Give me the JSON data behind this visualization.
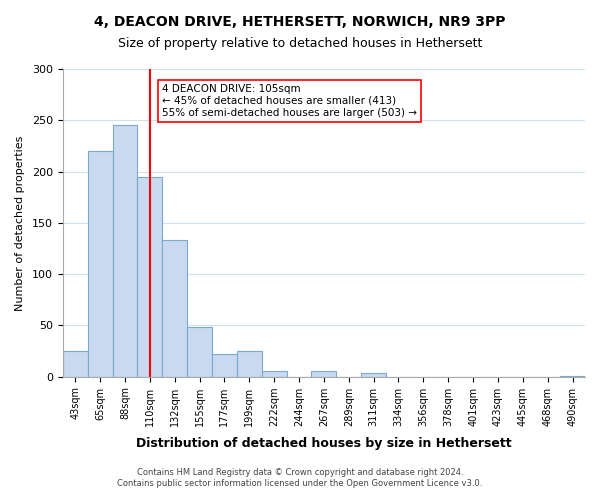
{
  "title": "4, DEACON DRIVE, HETHERSETT, NORWICH, NR9 3PP",
  "subtitle": "Size of property relative to detached houses in Hethersett",
  "xlabel": "Distribution of detached houses by size in Hethersett",
  "ylabel": "Number of detached properties",
  "bar_labels": [
    "43sqm",
    "65sqm",
    "88sqm",
    "110sqm",
    "132sqm",
    "155sqm",
    "177sqm",
    "199sqm",
    "222sqm",
    "244sqm",
    "267sqm",
    "289sqm",
    "311sqm",
    "334sqm",
    "356sqm",
    "378sqm",
    "401sqm",
    "423sqm",
    "445sqm",
    "468sqm",
    "490sqm"
  ],
  "bar_values": [
    25,
    220,
    245,
    195,
    133,
    48,
    22,
    25,
    6,
    0,
    6,
    0,
    4,
    0,
    0,
    0,
    0,
    0,
    0,
    0,
    1
  ],
  "bar_color": "#c8d9f0",
  "bar_edge_color": "#7aaad0",
  "vline_x": 3,
  "vline_color": "red",
  "annotation_title": "4 DEACON DRIVE: 105sqm",
  "annotation_line1": "← 45% of detached houses are smaller (413)",
  "annotation_line2": "55% of semi-detached houses are larger (503) →",
  "annotation_box_color": "white",
  "annotation_box_edge": "red",
  "ylim": [
    0,
    300
  ],
  "yticks": [
    0,
    50,
    100,
    150,
    200,
    250,
    300
  ],
  "footer_line1": "Contains HM Land Registry data © Crown copyright and database right 2024.",
  "footer_line2": "Contains public sector information licensed under the Open Government Licence v3.0.",
  "bg_color": "white",
  "grid_color": "#d0e0f0"
}
